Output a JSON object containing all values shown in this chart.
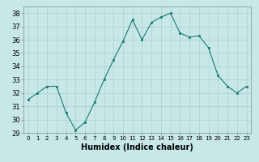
{
  "x": [
    0,
    1,
    2,
    3,
    4,
    5,
    6,
    7,
    8,
    9,
    10,
    11,
    12,
    13,
    14,
    15,
    16,
    17,
    18,
    19,
    20,
    21,
    22,
    23
  ],
  "y": [
    31.5,
    32.0,
    32.5,
    32.5,
    30.5,
    29.2,
    29.8,
    31.3,
    33.0,
    34.5,
    35.9,
    37.5,
    36.0,
    37.3,
    37.7,
    38.0,
    36.5,
    36.2,
    36.3,
    35.4,
    33.3,
    32.5,
    32.0,
    32.5
  ],
  "xlabel": "Humidex (Indice chaleur)",
  "xlim": [
    -0.5,
    23.5
  ],
  "ylim": [
    29,
    38.5
  ],
  "yticks": [
    29,
    30,
    31,
    32,
    33,
    34,
    35,
    36,
    37,
    38
  ],
  "xticks": [
    0,
    1,
    2,
    3,
    4,
    5,
    6,
    7,
    8,
    9,
    10,
    11,
    12,
    13,
    14,
    15,
    16,
    17,
    18,
    19,
    20,
    21,
    22,
    23
  ],
  "line_color": "#1a7a6e",
  "marker_color": "#1a7a6e",
  "bg_color": "#c8e8e8",
  "grid_color": "#aad0d0",
  "axes_bg": "#c8e8e8",
  "xlabel_fontsize": 7,
  "tick_fontsize": 5,
  "ytick_fontsize": 6
}
